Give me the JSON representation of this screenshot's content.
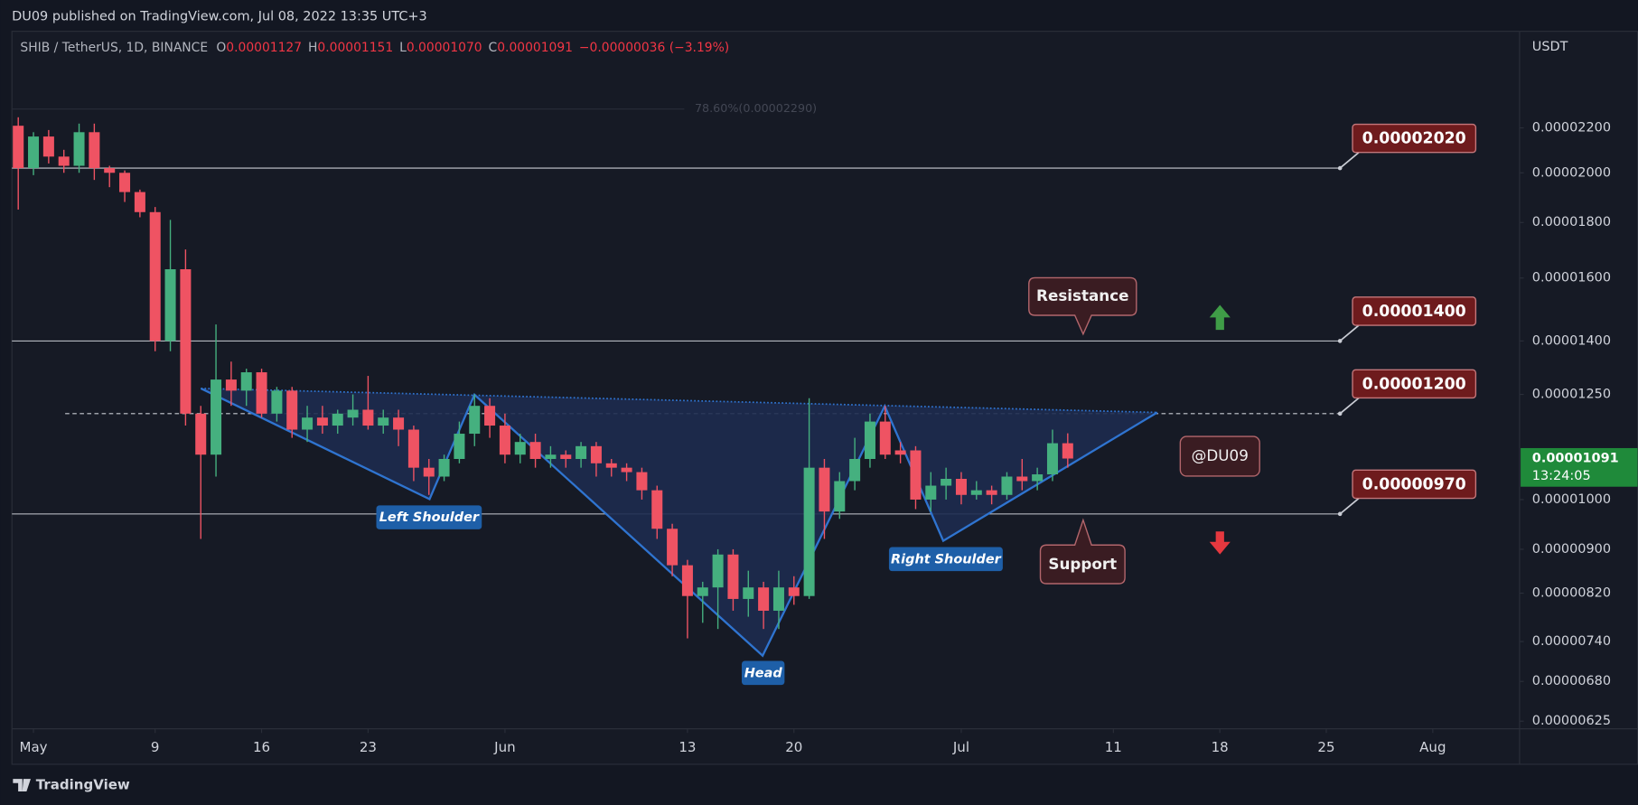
{
  "header": {
    "title": "DU09 published on TradingView.com, Jul 08, 2022 13:35 UTC+3",
    "symbol": "SHIB / TetherUS, 1D, BINANCE",
    "fields": [
      {
        "key": "O",
        "value": "0.00001127"
      },
      {
        "key": "H",
        "value": "0.00001151"
      },
      {
        "key": "L",
        "value": "0.00001070"
      },
      {
        "key": "C",
        "value": "0.00001091"
      }
    ],
    "change": "−0.00000036 (−3.19%)"
  },
  "footer": {
    "brand": "TradingView"
  },
  "chart_data": {
    "type": "candlestick",
    "log_scale": true,
    "grid": false,
    "axis_unit": "USDT",
    "up_color": "#45b07f",
    "down_color": "#ef5363",
    "x": [
      "2022-04-30",
      "2022-05-01",
      "2022-05-02",
      "2022-05-03",
      "2022-05-04",
      "2022-05-05",
      "2022-05-06",
      "2022-05-07",
      "2022-05-08",
      "2022-05-09",
      "2022-05-10",
      "2022-05-11",
      "2022-05-12",
      "2022-05-13",
      "2022-05-14",
      "2022-05-15",
      "2022-05-16",
      "2022-05-17",
      "2022-05-18",
      "2022-05-19",
      "2022-05-20",
      "2022-05-21",
      "2022-05-22",
      "2022-05-23",
      "2022-05-24",
      "2022-05-25",
      "2022-05-26",
      "2022-05-27",
      "2022-05-28",
      "2022-05-29",
      "2022-05-30",
      "2022-05-31",
      "2022-06-01",
      "2022-06-02",
      "2022-06-03",
      "2022-06-04",
      "2022-06-05",
      "2022-06-06",
      "2022-06-07",
      "2022-06-08",
      "2022-06-09",
      "2022-06-10",
      "2022-06-11",
      "2022-06-12",
      "2022-06-13",
      "2022-06-14",
      "2022-06-15",
      "2022-06-16",
      "2022-06-17",
      "2022-06-18",
      "2022-06-19",
      "2022-06-20",
      "2022-06-21",
      "2022-06-22",
      "2022-06-23",
      "2022-06-24",
      "2022-06-25",
      "2022-06-26",
      "2022-06-27",
      "2022-06-28",
      "2022-06-29",
      "2022-06-30",
      "2022-07-01",
      "2022-07-02",
      "2022-07-03",
      "2022-07-04",
      "2022-07-05",
      "2022-07-06",
      "2022-07-07",
      "2022-07-08"
    ],
    "open": [
      2.21e-05,
      2.02e-05,
      2.16e-05,
      2.07e-05,
      2.03e-05,
      2.18e-05,
      2.02e-05,
      2e-05,
      1.92e-05,
      1.84e-05,
      1.4e-05,
      1.63e-05,
      1.2e-05,
      1.1e-05,
      1.29e-05,
      1.26e-05,
      1.31e-05,
      1.2e-05,
      1.26e-05,
      1.16e-05,
      1.19e-05,
      1.17e-05,
      1.19e-05,
      1.21e-05,
      1.17e-05,
      1.19e-05,
      1.16e-05,
      1.07e-05,
      1.05e-05,
      1.09e-05,
      1.15e-05,
      1.22e-05,
      1.17e-05,
      1.1e-05,
      1.13e-05,
      1.09e-05,
      1.1e-05,
      1.09e-05,
      1.12e-05,
      1.08e-05,
      1.07e-05,
      1.06e-05,
      1.02e-05,
      9.4e-06,
      8.7e-06,
      8.15e-06,
      8.3e-06,
      8.9e-06,
      8.1e-06,
      8.3e-06,
      7.9e-06,
      8.3e-06,
      8.15e-06,
      1.07e-05,
      9.75e-06,
      1.04e-05,
      1.09e-05,
      1.18e-05,
      1.11e-05,
      1.11e-05,
      1e-05,
      1.03e-05,
      1.045e-05,
      1.01e-05,
      1.02e-05,
      1.01e-05,
      1.05e-05,
      1.04e-05,
      1.055e-05,
      1.127e-05
    ],
    "high": [
      2.25e-05,
      2.18e-05,
      2.19e-05,
      2.1e-05,
      2.22e-05,
      2.22e-05,
      2.03e-05,
      2.01e-05,
      1.93e-05,
      1.86e-05,
      1.81e-05,
      1.7e-05,
      1.22e-05,
      1.45e-05,
      1.34e-05,
      1.32e-05,
      1.32e-05,
      1.27e-05,
      1.27e-05,
      1.22e-05,
      1.22e-05,
      1.21e-05,
      1.25e-05,
      1.3e-05,
      1.21e-05,
      1.21e-05,
      1.17e-05,
      1.09e-05,
      1.1e-05,
      1.18e-05,
      1.25e-05,
      1.24e-05,
      1.2e-05,
      1.15e-05,
      1.15e-05,
      1.12e-05,
      1.11e-05,
      1.13e-05,
      1.13e-05,
      1.09e-05,
      1.08e-05,
      1.07e-05,
      1.03e-05,
      9.5e-06,
      8.8e-06,
      8.4e-06,
      9e-06,
      9e-06,
      8.6e-06,
      8.4e-06,
      8.6e-06,
      8.5e-06,
      1.24e-05,
      1.09e-05,
      1.06e-05,
      1.14e-05,
      1.2e-05,
      1.22e-05,
      1.13e-05,
      1.12e-05,
      1.06e-05,
      1.07e-05,
      1.06e-05,
      1.04e-05,
      1.03e-05,
      1.06e-05,
      1.09e-05,
      1.07e-05,
      1.16e-05,
      1.151e-05
    ],
    "low": [
      1.85e-05,
      1.99e-05,
      2.04e-05,
      2e-05,
      2e-05,
      1.97e-05,
      1.94e-05,
      1.88e-05,
      1.82e-05,
      1.37e-05,
      1.37e-05,
      1.17e-05,
      9.2e-06,
      1.05e-05,
      1.22e-05,
      1.22e-05,
      1.19e-05,
      1.18e-05,
      1.14e-05,
      1.13e-05,
      1.15e-05,
      1.15e-05,
      1.17e-05,
      1.16e-05,
      1.15e-05,
      1.12e-05,
      1.04e-05,
      1.01e-05,
      1.04e-05,
      1.08e-05,
      1.12e-05,
      1.14e-05,
      1.08e-05,
      1.08e-05,
      1.07e-05,
      1.07e-05,
      1.07e-05,
      1.07e-05,
      1.05e-05,
      1.05e-05,
      1.04e-05,
      1e-05,
      9.2e-06,
      8.5e-06,
      7.45e-06,
      7.7e-06,
      7.6e-06,
      7.9e-06,
      7.8e-06,
      7.6e-06,
      7.6e-06,
      8e-06,
      8.1e-06,
      9.2e-06,
      9.6e-06,
      1.02e-05,
      1.07e-05,
      1.09e-05,
      1.08e-05,
      9.8e-06,
      9.75e-06,
      1e-05,
      9.9e-06,
      1e-05,
      9.9e-06,
      1e-05,
      1.02e-05,
      1.02e-05,
      1.04e-05,
      1.07e-05
    ],
    "close": [
      2.02e-05,
      2.16e-05,
      2.07e-05,
      2.03e-05,
      2.18e-05,
      2.02e-05,
      2e-05,
      1.92e-05,
      1.84e-05,
      1.4e-05,
      1.63e-05,
      1.2e-05,
      1.1e-05,
      1.29e-05,
      1.26e-05,
      1.31e-05,
      1.2e-05,
      1.26e-05,
      1.16e-05,
      1.19e-05,
      1.17e-05,
      1.2e-05,
      1.21e-05,
      1.17e-05,
      1.19e-05,
      1.16e-05,
      1.07e-05,
      1.05e-05,
      1.09e-05,
      1.15e-05,
      1.22e-05,
      1.17e-05,
      1.1e-05,
      1.13e-05,
      1.09e-05,
      1.1e-05,
      1.09e-05,
      1.12e-05,
      1.08e-05,
      1.07e-05,
      1.06e-05,
      1.02e-05,
      9.4e-06,
      8.7e-06,
      8.15e-06,
      8.3e-06,
      8.9e-06,
      8.1e-06,
      8.3e-06,
      7.9e-06,
      8.3e-06,
      8.15e-06,
      1.07e-05,
      9.75e-06,
      1.04e-05,
      1.09e-05,
      1.18e-05,
      1.1e-05,
      1.1e-05,
      1e-05,
      1.03e-05,
      1.045e-05,
      1.01e-05,
      1.02e-05,
      1.01e-05,
      1.05e-05,
      1.04e-05,
      1.055e-05,
      1.127e-05,
      1.091e-05
    ],
    "xlim": [
      "2022-04-29T14:00",
      "2022-08-06T17:00"
    ],
    "xticks": [
      {
        "value": "2022-05-01",
        "label": "May"
      },
      {
        "value": "2022-05-09",
        "label": "9"
      },
      {
        "value": "2022-05-16",
        "label": "16"
      },
      {
        "value": "2022-05-23",
        "label": "23"
      },
      {
        "value": "2022-06-01",
        "label": "Jun"
      },
      {
        "value": "2022-06-13",
        "label": "13"
      },
      {
        "value": "2022-06-20",
        "label": "20"
      },
      {
        "value": "2022-07-01",
        "label": "Jul"
      },
      {
        "value": "2022-07-11",
        "label": "11"
      },
      {
        "value": "2022-07-18",
        "label": "18"
      },
      {
        "value": "2022-07-25",
        "label": "25"
      },
      {
        "value": "2022-08-01",
        "label": "Aug"
      }
    ],
    "ylim": [
      6.15e-06,
      2.7e-05
    ],
    "yticks": [
      {
        "value": 2.2e-05,
        "label": "0.00002200"
      },
      {
        "value": 2e-05,
        "label": "0.00002000"
      },
      {
        "value": 1.8e-05,
        "label": "0.00001800"
      },
      {
        "value": 1.6e-05,
        "label": "0.00001600"
      },
      {
        "value": 1.4e-05,
        "label": "0.00001400"
      },
      {
        "value": 1.25e-05,
        "label": "0.00001250"
      },
      {
        "value": 1e-05,
        "label": "0.00001000"
      },
      {
        "value": 9e-06,
        "label": "0.00000900"
      },
      {
        "value": 8.2e-06,
        "label": "0.00000820"
      },
      {
        "value": 7.4e-06,
        "label": "0.00000740"
      },
      {
        "value": 6.8e-06,
        "label": "0.00000680"
      },
      {
        "value": 6.25e-06,
        "label": "0.00000625"
      }
    ],
    "levels": [
      {
        "value": 2.02e-05,
        "label": "0.00002020",
        "dashed": false
      },
      {
        "value": 1.4e-05,
        "label": "0.00001400",
        "dashed": false
      },
      {
        "value": 1.2e-05,
        "label": "0.00001200",
        "dashed": true
      },
      {
        "value": 9.7e-06,
        "label": "0.00000970",
        "dashed": false
      }
    ],
    "fib_level": {
      "value": 2.29e-05,
      "label": "78.60%(0.00002290)"
    },
    "last_price": {
      "value": 1.091e-05,
      "label": "0.00001091",
      "countdown": "13:24:05"
    },
    "annotations": {
      "resistance": "Resistance",
      "support": "Support",
      "author": "@DU09",
      "left_shoulder": "Left Shoulder",
      "head": "Head",
      "right_shoulder": "Right Shoulder"
    }
  }
}
